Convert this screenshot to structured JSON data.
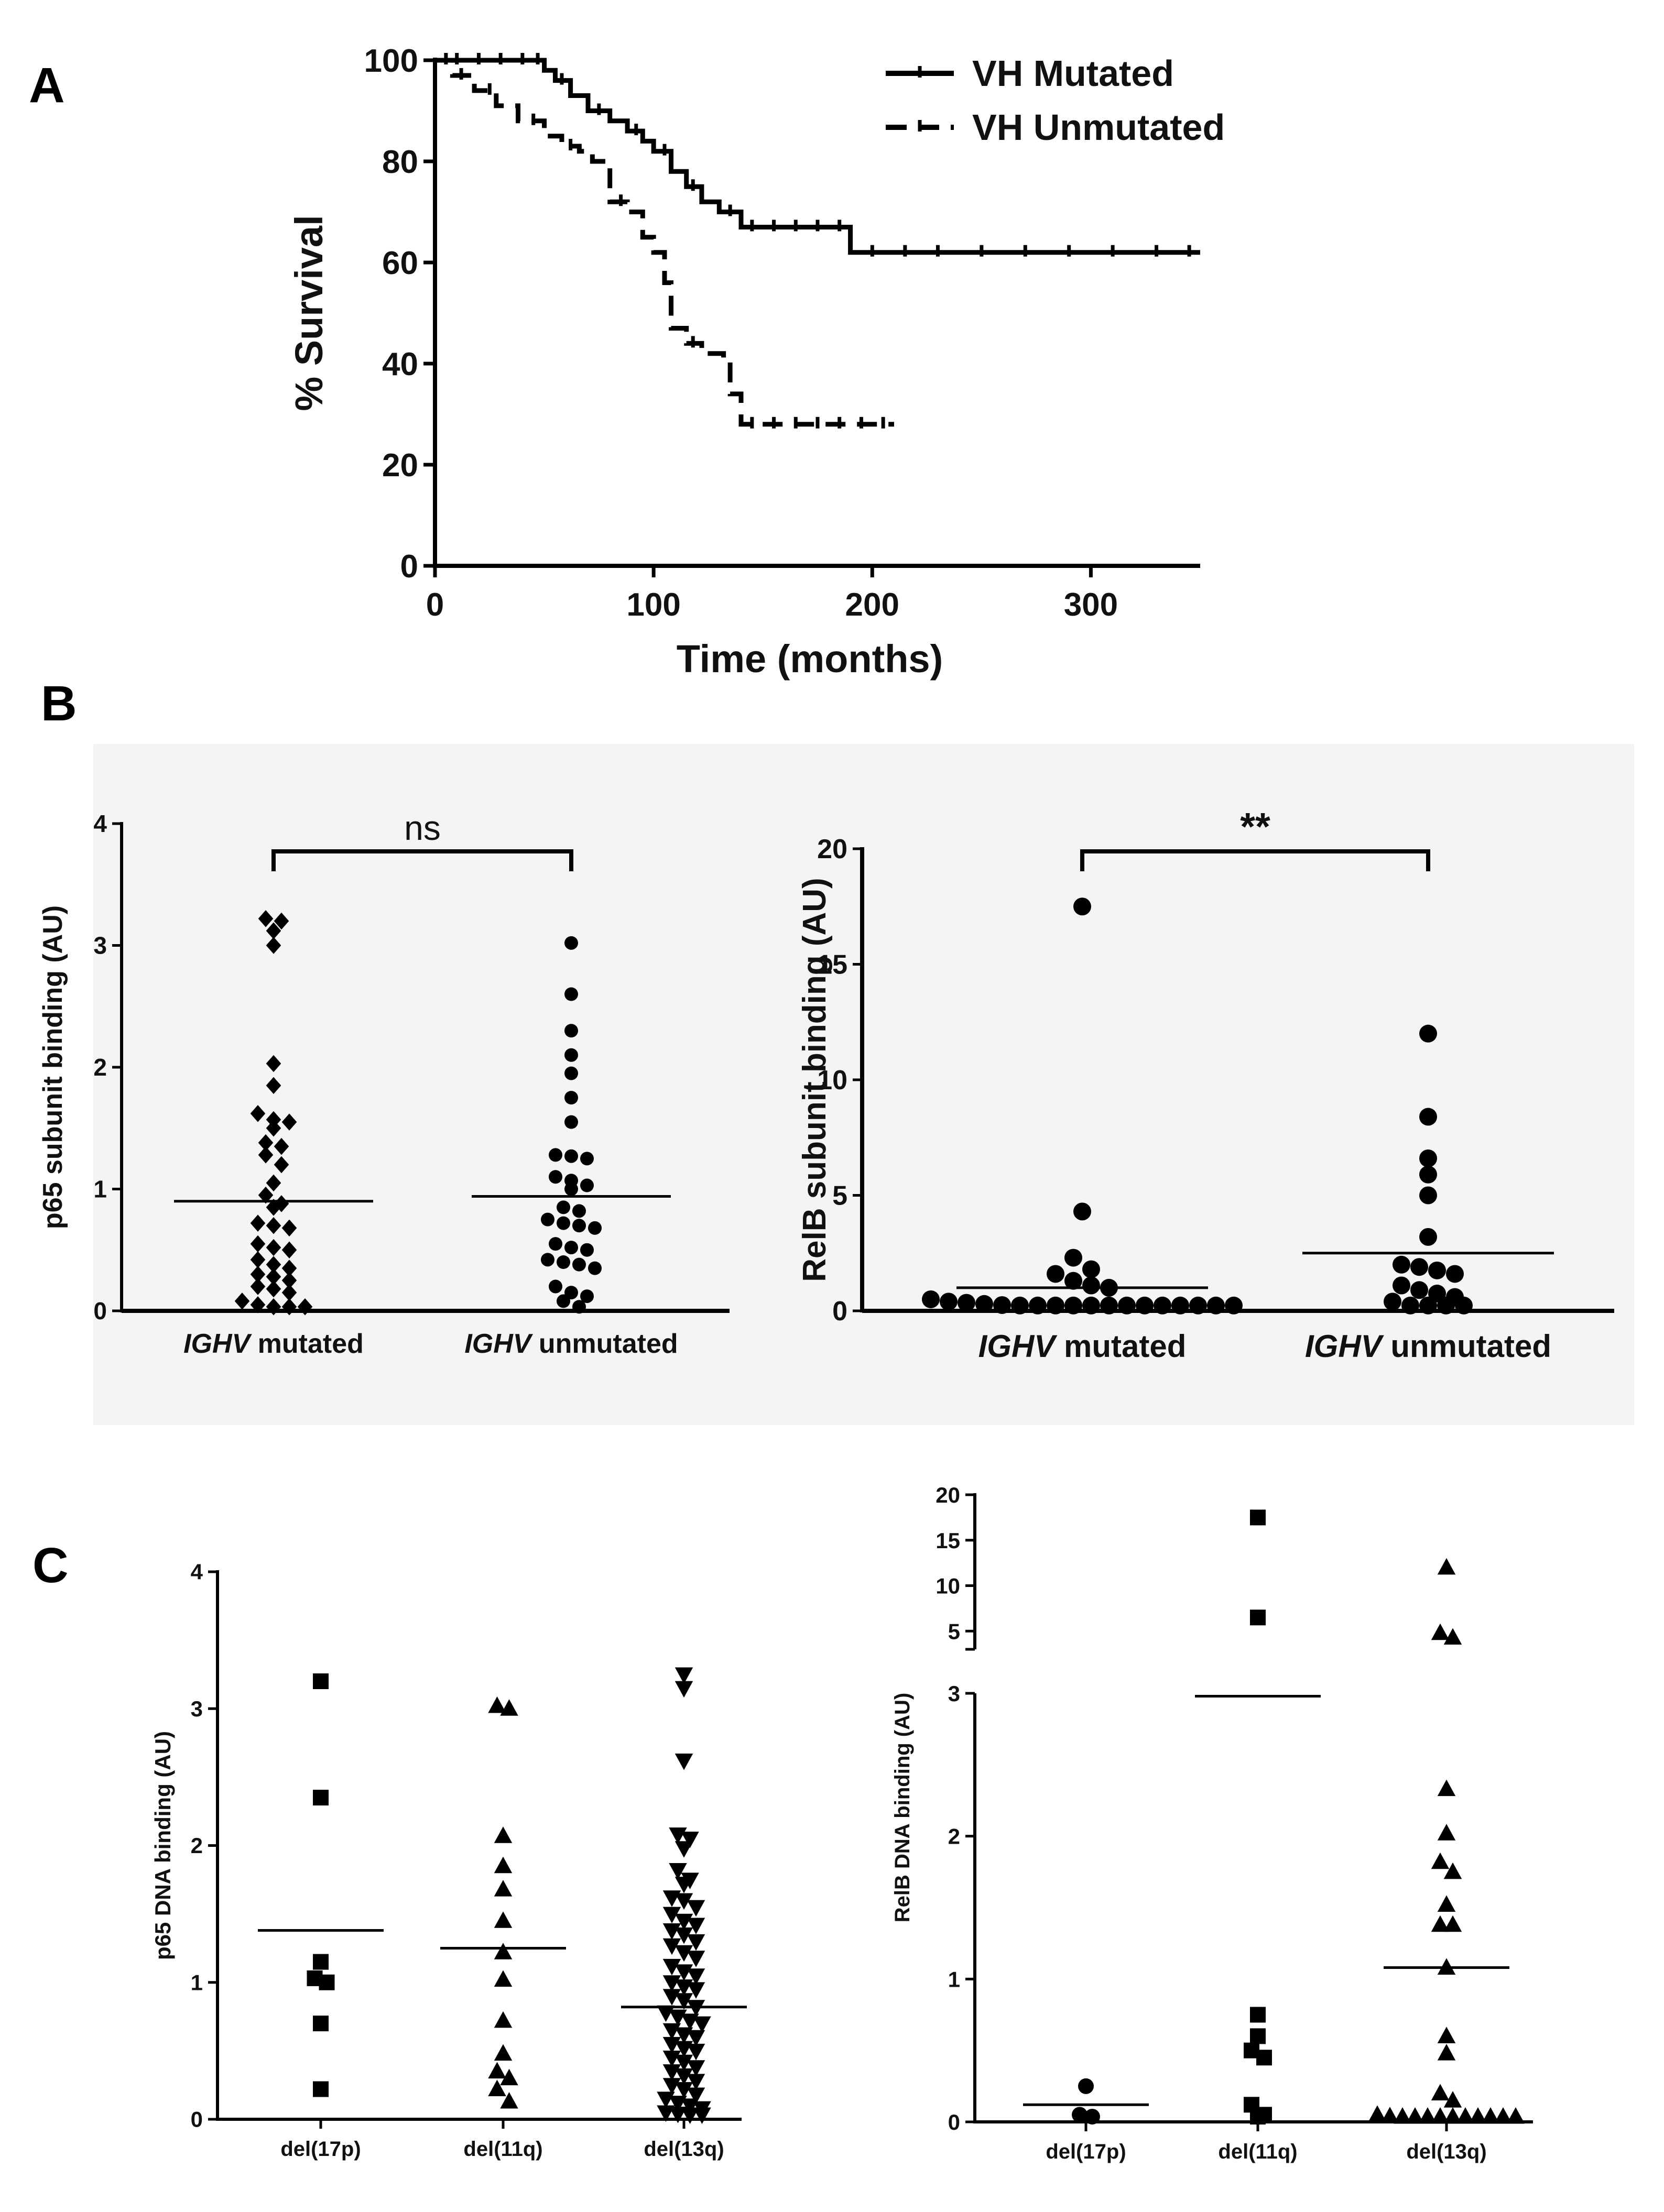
{
  "panel_labels": [
    "A",
    "B",
    "C"
  ],
  "chart_data": [
    {
      "id": "A",
      "type": "line",
      "title": "",
      "xlabel": "Time (months)",
      "ylabel": "% Survival",
      "xlim": [
        0,
        350
      ],
      "ylim": [
        0,
        100
      ],
      "xticks": [
        0,
        100,
        200,
        300
      ],
      "yticks": [
        0,
        20,
        40,
        60,
        80,
        100
      ],
      "legend": [
        "VH Mutated",
        "VH Unmutated"
      ],
      "legend_position": "top-right",
      "series": [
        {
          "name": "VH Mutated",
          "style": "solid",
          "x": [
            0,
            45,
            50,
            55,
            62,
            70,
            80,
            88,
            95,
            100,
            108,
            115,
            122,
            130,
            140,
            190,
            350
          ],
          "y": [
            100,
            100,
            98,
            96,
            93,
            90,
            88,
            86,
            84,
            82,
            78,
            75,
            72,
            70,
            67,
            62,
            62
          ],
          "censor_x": [
            5,
            10,
            20,
            30,
            40,
            47,
            58,
            75,
            92,
            105,
            118,
            135,
            145,
            155,
            165,
            175,
            185,
            200,
            215,
            230,
            250,
            270,
            290,
            310,
            330,
            345
          ]
        },
        {
          "name": "VH Unmutated",
          "style": "dashed",
          "x": [
            0,
            8,
            18,
            28,
            38,
            50,
            58,
            66,
            72,
            80,
            88,
            95,
            100,
            105,
            108,
            115,
            122,
            132,
            135,
            140,
            210
          ],
          "y": [
            100,
            97,
            94,
            91,
            88,
            85,
            83,
            82,
            80,
            72,
            70,
            65,
            62,
            56,
            47,
            44,
            42,
            41,
            34,
            28,
            28
          ],
          "censor_x": [
            12,
            25,
            45,
            62,
            85,
            118,
            145,
            155,
            165,
            175,
            185,
            195,
            205
          ]
        }
      ]
    },
    {
      "id": "B-left",
      "type": "scatter",
      "ylabel": "p65 subunit binding (AU)",
      "ylim": [
        0,
        4
      ],
      "yticks": [
        0,
        1,
        2,
        3,
        4
      ],
      "categories": [
        "mutated",
        "unmutated"
      ],
      "category_prefix": "IGHV",
      "significance": "ns",
      "series": [
        {
          "name": "IGHV mutated",
          "marker": "diamond",
          "mean": 0.9,
          "values": [
            3.2,
            3.22,
            3.12,
            3.0,
            2.03,
            1.85,
            1.62,
            1.57,
            1.55,
            1.5,
            1.38,
            1.35,
            1.28,
            1.2,
            1.05,
            0.95,
            0.88,
            0.85,
            0.72,
            0.7,
            0.68,
            0.55,
            0.52,
            0.5,
            0.42,
            0.38,
            0.35,
            0.3,
            0.28,
            0.25,
            0.2,
            0.18,
            0.15,
            0.08,
            0.05,
            0.02,
            0.01,
            0.0
          ]
        },
        {
          "name": "IGHV unmutated",
          "marker": "circle",
          "mean": 0.94,
          "values": [
            3.02,
            2.6,
            2.3,
            2.1,
            1.95,
            1.75,
            1.55,
            1.28,
            1.27,
            1.25,
            1.1,
            1.07,
            1.03,
            1.0,
            0.85,
            0.82,
            0.75,
            0.72,
            0.7,
            0.68,
            0.55,
            0.52,
            0.5,
            0.42,
            0.4,
            0.38,
            0.35,
            0.2,
            0.15,
            0.12,
            0.08,
            0.02
          ]
        }
      ]
    },
    {
      "id": "B-right",
      "type": "scatter",
      "ylabel": "RelB subunit binding  (AU)",
      "ylim": [
        0,
        20
      ],
      "yticks": [
        0,
        5,
        10,
        15,
        20
      ],
      "categories": [
        "mutated",
        "unmutated"
      ],
      "category_prefix": "IGHV",
      "significance": "**",
      "series": [
        {
          "name": "IGHV mutated",
          "marker": "circle",
          "mean": 1.0,
          "values": [
            17.5,
            4.3,
            2.3,
            1.8,
            1.6,
            1.3,
            1.1,
            1.0,
            0.5,
            0.4,
            0.35,
            0.3,
            0.25,
            0.2,
            0.15,
            0.12,
            0.1,
            0.08,
            0.05,
            0.05,
            0.03,
            0.02,
            0.02,
            0.0,
            0.0,
            0.0
          ]
        },
        {
          "name": "IGHV unmutated",
          "marker": "circle",
          "mean": 2.5,
          "values": [
            12.0,
            8.4,
            6.6,
            5.9,
            5.0,
            3.2,
            2.0,
            1.9,
            1.75,
            1.6,
            1.1,
            0.9,
            0.75,
            0.6,
            0.4,
            0.15,
            0.1,
            0.05,
            0.02
          ]
        }
      ]
    },
    {
      "id": "C-left",
      "type": "scatter",
      "ylabel": "p65 DNA binding (AU)",
      "ylim": [
        0,
        4
      ],
      "yticks": [
        0,
        1,
        2,
        3,
        4
      ],
      "categories": [
        "del(17p)",
        "del(11q)",
        "del(13q)"
      ],
      "series": [
        {
          "name": "del(17p)",
          "marker": "square",
          "mean": 1.38,
          "values": [
            3.2,
            2.35,
            1.15,
            1.03,
            1.0,
            0.7,
            0.22
          ]
        },
        {
          "name": "del(11q)",
          "marker": "triangle-up",
          "mean": 1.25,
          "values": [
            3.02,
            3.0,
            2.07,
            1.85,
            1.68,
            1.45,
            1.22,
            1.02,
            0.72,
            0.48,
            0.35,
            0.3,
            0.22,
            0.13
          ]
        },
        {
          "name": "del(13q)",
          "marker": "triangle-down",
          "mean": 0.82,
          "values": [
            3.25,
            3.15,
            2.62,
            2.08,
            2.05,
            1.98,
            1.82,
            1.75,
            1.72,
            1.62,
            1.6,
            1.55,
            1.5,
            1.45,
            1.42,
            1.38,
            1.35,
            1.3,
            1.27,
            1.22,
            1.18,
            1.12,
            1.08,
            1.05,
            1.0,
            0.97,
            0.95,
            0.9,
            0.87,
            0.82,
            0.78,
            0.75,
            0.72,
            0.7,
            0.65,
            0.62,
            0.6,
            0.55,
            0.52,
            0.5,
            0.45,
            0.42,
            0.38,
            0.35,
            0.32,
            0.28,
            0.25,
            0.22,
            0.18,
            0.15,
            0.12,
            0.1,
            0.08,
            0.05,
            0.04,
            0.03,
            0.02
          ]
        }
      ]
    },
    {
      "id": "C-right",
      "type": "scatter",
      "ylabel": "RelB DNA binding (AU)",
      "ylim_lower": [
        0,
        3
      ],
      "ylim_upper": [
        3,
        20
      ],
      "yticks_lower": [
        0,
        1,
        2,
        3
      ],
      "yticks_upper": [
        5,
        10,
        15,
        20
      ],
      "axis_break": true,
      "categories": [
        "del(17p)",
        "del(11q)",
        "del(13q)"
      ],
      "series": [
        {
          "name": "del(17p)",
          "marker": "circle",
          "mean": 0.12,
          "values": [
            0.25,
            0.05,
            0.02
          ]
        },
        {
          "name": "del(11q)",
          "marker": "square",
          "mean": 2.98,
          "values": [
            17.5,
            6.5,
            0.75,
            0.6,
            0.5,
            0.45,
            0.12,
            0.05,
            0.02
          ]
        },
        {
          "name": "del(13q)",
          "marker": "triangle-up",
          "mean": 1.08,
          "values": [
            12.0,
            4.8,
            4.3,
            2.33,
            2.02,
            1.82,
            1.75,
            1.52,
            1.38,
            1.38,
            1.08,
            0.6,
            0.48,
            0.2,
            0.15,
            0.05,
            0.04,
            0.03,
            0.03,
            0.02,
            0.02,
            0.01,
            0.01,
            0.0,
            0.0,
            0.0,
            0.0
          ]
        }
      ]
    }
  ]
}
